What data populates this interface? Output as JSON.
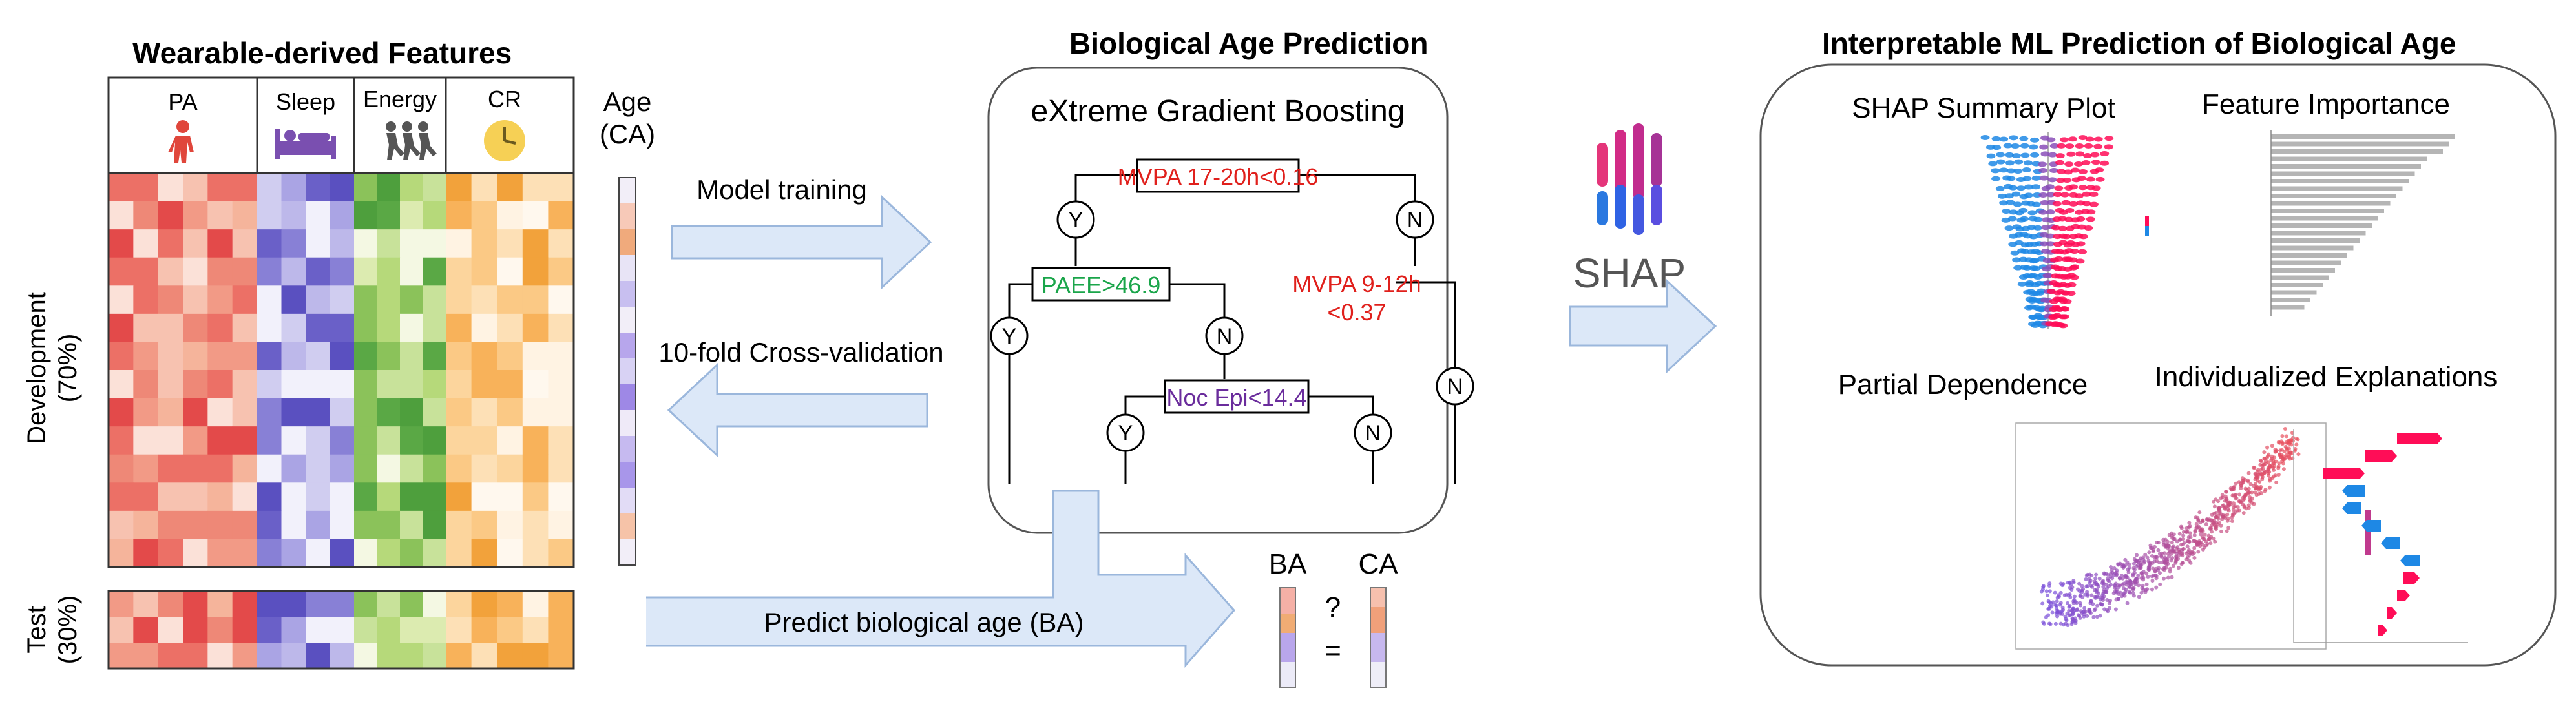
{
  "panels": {
    "features_title": "Wearable-derived Features",
    "prediction_title": "Biological Age Prediction",
    "interpretable_title": "Interpretable ML Prediction of Biological Age"
  },
  "features": {
    "columns": [
      "PA",
      "Sleep",
      "Energy",
      "CR"
    ],
    "row_labels": {
      "development_line1": "Development",
      "development_line2": "(70%)",
      "test_line1": "Test",
      "test_line2": "(30%)"
    },
    "age_label_line1": "Age",
    "age_label_line2": "(CA)",
    "icons": [
      "person-walking-icon",
      "bed-icon",
      "runners-icon",
      "clock-icon"
    ]
  },
  "flow": {
    "model_training": "Model training",
    "cross_validation": "10-fold Cross-validation",
    "predict": "Predict biological age (BA)",
    "ba": "BA",
    "ca": "CA",
    "question": "?",
    "equals": "="
  },
  "model": {
    "name": "eXtreme Gradient Boosting",
    "nodes": {
      "root": "MVPA 17-20h<0.16",
      "paee": "PAEE>46.9",
      "mvpa_line1": "MVPA 9-12h",
      "mvpa_line2": "<0.37",
      "noc": "Noc Epi<14.4"
    },
    "yes": "Y",
    "no": "N"
  },
  "shap": {
    "logo_text": "SHAP",
    "summary_title": "SHAP Summary Plot",
    "importance_title": "Feature Importance",
    "dependence_title": "Partial Dependence",
    "individual_title": "Individualized Explanations"
  },
  "colors": {
    "pa": "#e34a4a",
    "sleep": "#6a60c8",
    "energy": "#4e9f3d",
    "cr": "#f2a23b",
    "arrow_fill": "#dce8f8",
    "arrow_stroke": "#9bb7dc",
    "red_text": "#e0201c",
    "green_text": "#1aa54a",
    "purple_text": "#6a2c9c"
  }
}
